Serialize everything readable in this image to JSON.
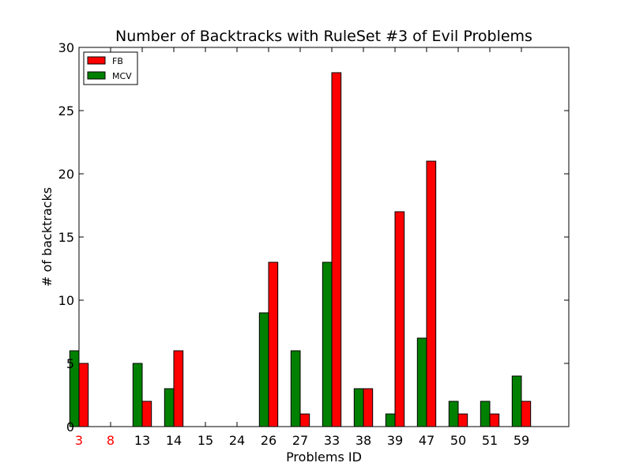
{
  "chart_data": {
    "type": "bar",
    "title": "Number of Backtracks with RuleSet #3 of Evil Problems",
    "xlabel": "Problems ID",
    "ylabel": "# of backtracks",
    "ylim": [
      0,
      30
    ],
    "yticks": [
      0,
      5,
      10,
      15,
      20,
      25,
      30
    ],
    "categories": [
      "3",
      "8",
      "13",
      "14",
      "15",
      "24",
      "26",
      "27",
      "33",
      "38",
      "39",
      "47",
      "50",
      "51",
      "59"
    ],
    "highlighted_categories": [
      "3",
      "8"
    ],
    "highlight_color": "#ff0000",
    "series": [
      {
        "name": "MCV",
        "color": "#008000",
        "values": [
          6,
          0,
          5,
          3,
          0,
          0,
          9,
          6,
          13,
          3,
          1,
          7,
          2,
          2,
          4
        ]
      },
      {
        "name": "FB",
        "color": "#ff0000",
        "values": [
          5,
          0,
          2,
          6,
          0,
          0,
          13,
          1,
          28,
          3,
          17,
          21,
          1,
          1,
          2
        ]
      }
    ],
    "legend": {
      "placement": "top-left",
      "order": [
        "FB",
        "MCV"
      ]
    },
    "grid": false
  }
}
